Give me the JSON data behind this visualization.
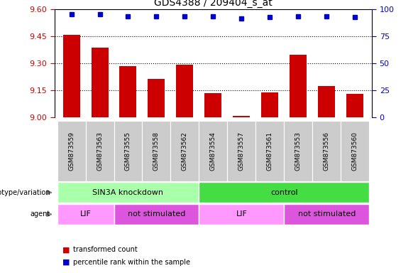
{
  "title": "GDS4388 / 209404_s_at",
  "samples": [
    "GSM873559",
    "GSM873563",
    "GSM873555",
    "GSM873558",
    "GSM873562",
    "GSM873554",
    "GSM873557",
    "GSM873561",
    "GSM873553",
    "GSM873556",
    "GSM873560"
  ],
  "bar_values": [
    9.46,
    9.39,
    9.285,
    9.215,
    9.295,
    9.135,
    9.01,
    9.14,
    9.35,
    9.175,
    9.13
  ],
  "percentile_values": [
    96,
    96,
    94,
    94,
    94,
    94,
    92,
    93,
    94,
    94,
    93
  ],
  "ylim_left": [
    9.0,
    9.6
  ],
  "ylim_right": [
    0,
    100
  ],
  "yticks_left": [
    9.0,
    9.15,
    9.3,
    9.45,
    9.6
  ],
  "yticks_right": [
    0,
    25,
    50,
    75,
    100
  ],
  "bar_color": "#cc0000",
  "percentile_color": "#0000cc",
  "background_color": "#ffffff",
  "grid_ticks": [
    9.15,
    9.3,
    9.45
  ],
  "genotype_groups": [
    {
      "label": "SIN3A knockdown",
      "start": 0,
      "end": 5,
      "color": "#aaffaa"
    },
    {
      "label": "control",
      "start": 5,
      "end": 11,
      "color": "#44dd44"
    }
  ],
  "agent_groups": [
    {
      "label": "LIF",
      "start": 0,
      "end": 2,
      "color": "#ff99ff"
    },
    {
      "label": "not stimulated",
      "start": 2,
      "end": 5,
      "color": "#dd55dd"
    },
    {
      "label": "LIF",
      "start": 5,
      "end": 8,
      "color": "#ff99ff"
    },
    {
      "label": "not stimulated",
      "start": 8,
      "end": 11,
      "color": "#dd55dd"
    }
  ],
  "sample_box_color": "#cccccc",
  "ylabel_left_color": "#cc0000",
  "ylabel_right_color": "#0000cc",
  "legend_bar_color": "#cc0000",
  "legend_pct_color": "#0000cc"
}
